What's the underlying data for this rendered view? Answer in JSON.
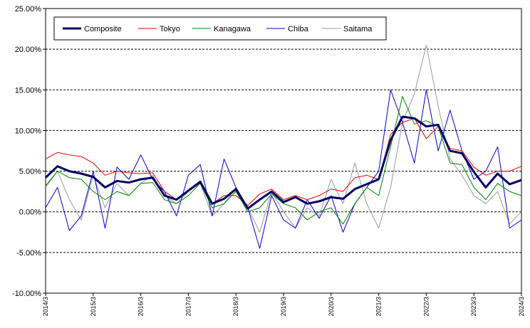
{
  "chart_data": {
    "type": "line",
    "title": "",
    "xlabel": "",
    "ylabel": "",
    "ylim": [
      -10,
      25
    ],
    "y_ticks": [
      -10,
      -5,
      0,
      5,
      10,
      15,
      20,
      25
    ],
    "y_tick_labels": [
      "-10.00%",
      "-5.00%",
      "0.00%",
      "5.00%",
      "10.00%",
      "15.00%",
      "20.00%",
      "25.00%"
    ],
    "x_tick_labels": [
      "2014/3",
      "2015/3",
      "2016/3",
      "2017/3",
      "2018/3",
      "2019/3",
      "2020/3",
      "2021/3",
      "2022/3",
      "2023/3",
      "2024/3"
    ],
    "grid": "horizontal-dashed",
    "legend_position": "top-left",
    "x": [
      "2014/3",
      "2014/6",
      "2014/9",
      "2014/12",
      "2015/3",
      "2015/6",
      "2015/9",
      "2015/12",
      "2016/3",
      "2016/6",
      "2016/9",
      "2016/12",
      "2017/3",
      "2017/6",
      "2017/9",
      "2017/12",
      "2018/3",
      "2018/6",
      "2018/9",
      "2018/12",
      "2019/3",
      "2019/6",
      "2019/9",
      "2019/12",
      "2020/3",
      "2020/6",
      "2020/9",
      "2020/12",
      "2021/3",
      "2021/6",
      "2021/9",
      "2021/12",
      "2022/3",
      "2022/6",
      "2022/9",
      "2022/12",
      "2023/3",
      "2023/6",
      "2023/9",
      "2023/12",
      "2024/3"
    ],
    "series": [
      {
        "name": "Composite",
        "color": "#000066",
        "width": 3,
        "values": [
          4.2,
          5.6,
          5.0,
          4.7,
          4.3,
          3.0,
          3.8,
          3.6,
          4.0,
          4.2,
          2.0,
          1.5,
          2.6,
          3.7,
          1.0,
          1.6,
          2.8,
          0.4,
          1.5,
          2.5,
          1.2,
          1.8,
          1.0,
          1.3,
          1.8,
          1.6,
          2.8,
          3.4,
          4.0,
          8.8,
          11.7,
          11.5,
          10.5,
          10.7,
          7.5,
          7.2,
          4.9,
          3.0,
          4.7,
          3.4,
          3.9
        ]
      },
      {
        "name": "Tokyo",
        "color": "#e00000",
        "width": 1,
        "values": [
          6.5,
          7.3,
          7.0,
          6.8,
          6.0,
          4.5,
          5.0,
          4.8,
          4.7,
          4.8,
          2.5,
          1.5,
          2.7,
          3.8,
          1.0,
          2.0,
          2.0,
          0.8,
          2.2,
          2.8,
          1.5,
          2.0,
          1.5,
          2.0,
          2.8,
          2.5,
          4.2,
          4.5,
          4.0,
          9.5,
          11.0,
          11.5,
          9.0,
          10.5,
          7.8,
          7.5,
          5.5,
          4.5,
          5.0,
          5.0,
          5.6
        ]
      },
      {
        "name": "Kanagawa",
        "color": "#008000",
        "width": 1,
        "values": [
          3.2,
          5.0,
          4.2,
          4.0,
          2.5,
          1.5,
          2.5,
          2.0,
          3.5,
          3.6,
          1.5,
          1.0,
          2.0,
          3.5,
          0.5,
          1.0,
          2.5,
          0.0,
          0.5,
          2.2,
          1.0,
          0.5,
          -1.0,
          0.0,
          0.5,
          -1.5,
          1.0,
          3.0,
          2.0,
          8.0,
          14.2,
          10.8,
          11.2,
          10.5,
          6.0,
          5.8,
          3.0,
          1.5,
          3.5,
          2.5,
          2.0
        ]
      },
      {
        "name": "Chiba",
        "color": "#0000cc",
        "width": 1,
        "values": [
          0.5,
          3.0,
          -2.3,
          -0.5,
          5.0,
          -2.0,
          5.5,
          4.0,
          7.0,
          4.0,
          2.5,
          -0.5,
          4.5,
          5.8,
          -0.5,
          6.5,
          3.0,
          0.5,
          -4.5,
          2.0,
          -1.0,
          -2.0,
          1.5,
          -0.8,
          2.0,
          -2.5,
          1.0,
          3.0,
          5.0,
          15.0,
          11.0,
          6.0,
          15.0,
          7.5,
          12.5,
          7.5,
          4.0,
          5.0,
          8.0,
          -2.0,
          -1.0
        ]
      },
      {
        "name": "Saitama",
        "color": "#999999",
        "width": 1,
        "values": [
          3.0,
          5.0,
          1.5,
          -1.0,
          4.5,
          0.5,
          3.5,
          2.0,
          3.5,
          4.5,
          2.0,
          1.0,
          2.5,
          3.5,
          -0.5,
          1.0,
          3.0,
          0.5,
          -2.5,
          2.5,
          0.0,
          -2.0,
          0.5,
          -0.5,
          4.0,
          1.0,
          6.0,
          1.0,
          -2.0,
          3.0,
          11.0,
          14.5,
          20.5,
          13.0,
          6.5,
          4.5,
          2.0,
          1.0,
          2.5,
          -1.5,
          0.0
        ]
      }
    ]
  }
}
